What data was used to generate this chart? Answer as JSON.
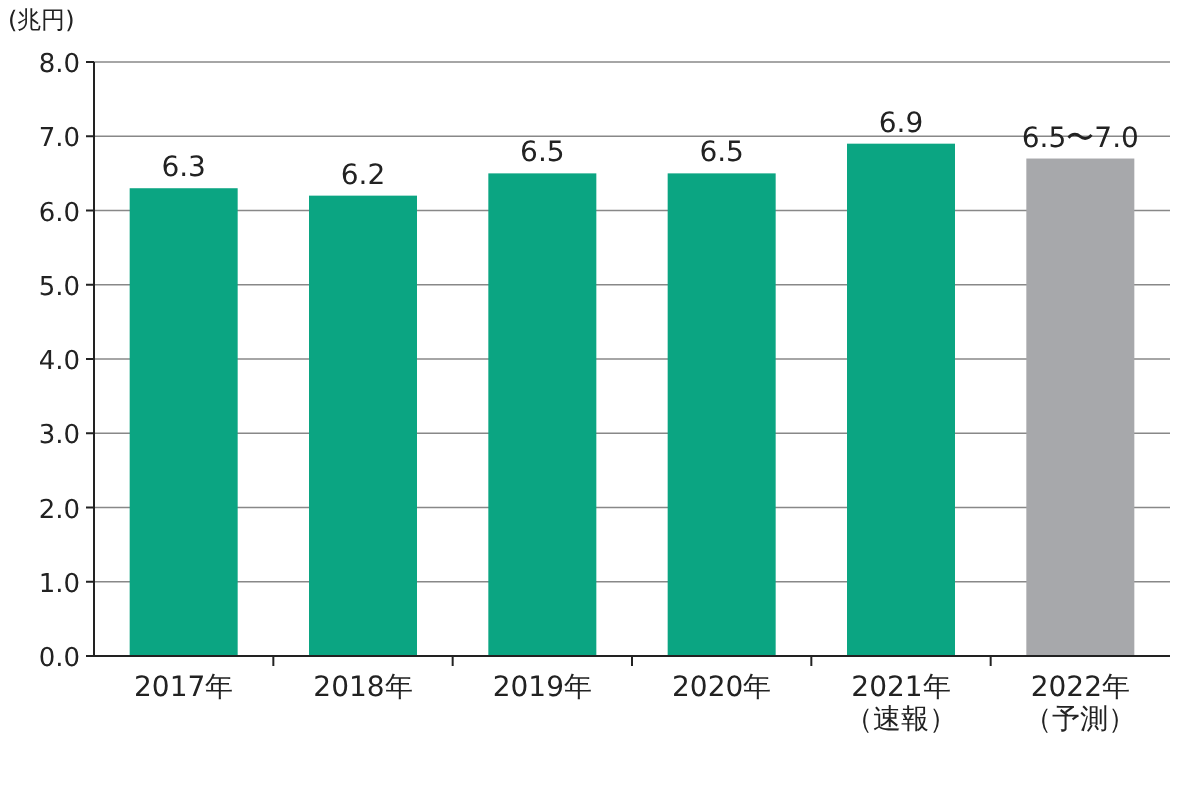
{
  "chart_data": {
    "type": "bar",
    "ylabel": "(兆円)",
    "categories": [
      "2017年",
      "2018年",
      "2019年",
      "2020年",
      "2021年（速報）",
      "2022年（予測）"
    ],
    "values": [
      6.3,
      6.2,
      6.5,
      6.5,
      6.9,
      6.7
    ],
    "colors": [
      "#0ba582",
      "#0ba582",
      "#0ba582",
      "#0ba582",
      "#0ba582",
      "#a7a8ab"
    ],
    "value_labels": [
      "6.3",
      "6.2",
      "6.5",
      "6.5",
      "6.9",
      null
    ],
    "annotations": [
      {
        "text": "6.5〜7.0",
        "x": "2022年（予測）",
        "y": 6.7
      }
    ],
    "ylim": [
      0,
      8
    ],
    "yticks": [
      {
        "value": 0,
        "label": "0.0"
      },
      {
        "value": 1,
        "label": "1.0"
      },
      {
        "value": 2,
        "label": "2.0"
      },
      {
        "value": 3,
        "label": "3.0"
      },
      {
        "value": 4,
        "label": "4.0"
      },
      {
        "value": 5,
        "label": "5.0"
      },
      {
        "value": 6,
        "label": "6.0"
      },
      {
        "value": 7,
        "label": "7.0"
      },
      {
        "value": 8,
        "label": "8.0"
      }
    ],
    "grid": "y"
  }
}
